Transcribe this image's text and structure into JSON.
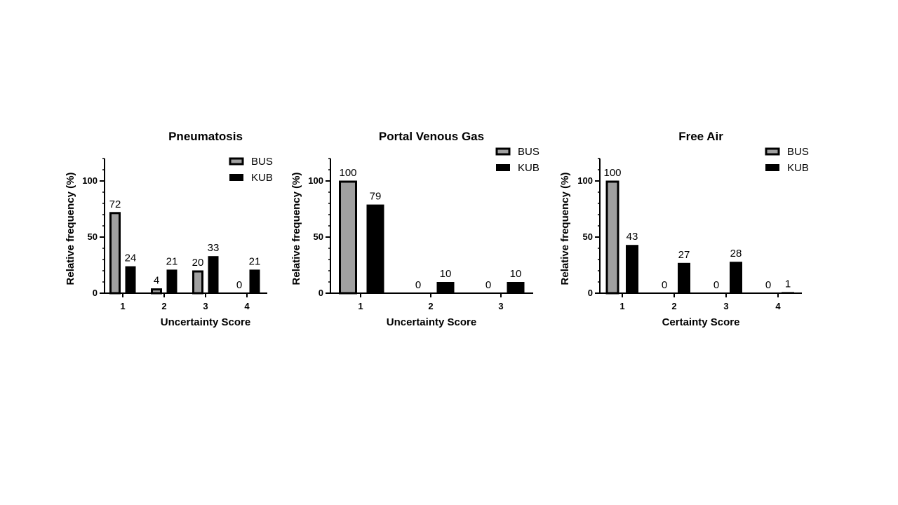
{
  "chart_data": [
    {
      "type": "bar",
      "title": "Pneumatosis",
      "xlabel": "Uncertainty Score",
      "ylabel": "Relative frequency (%)",
      "categories": [
        "1",
        "2",
        "3",
        "4"
      ],
      "ylim": [
        0,
        120
      ],
      "yticks": [
        "0",
        "50",
        "100"
      ],
      "legend_position": "top-right",
      "series": [
        {
          "name": "BUS",
          "color": "#a0a0a0",
          "values": [
            72,
            4,
            20,
            0
          ],
          "labels": [
            "72",
            "4",
            "20",
            "0"
          ]
        },
        {
          "name": "KUB",
          "color": "#000000",
          "values": [
            24,
            21,
            33,
            21
          ],
          "labels": [
            "24",
            "21",
            "33",
            "21"
          ]
        }
      ]
    },
    {
      "type": "bar",
      "title": "Portal Venous Gas",
      "xlabel": "Uncertainty Score",
      "ylabel": "Relative frequency (%)",
      "categories": [
        "1",
        "2",
        "3"
      ],
      "ylim": [
        0,
        120
      ],
      "yticks": [
        "0",
        "50",
        "100"
      ],
      "legend_position": "top-right",
      "series": [
        {
          "name": "BUS",
          "color": "#a0a0a0",
          "values": [
            100,
            0,
            0
          ],
          "labels": [
            "100",
            "0",
            "0"
          ]
        },
        {
          "name": "KUB",
          "color": "#000000",
          "values": [
            79,
            10,
            10
          ],
          "labels": [
            "79",
            "10",
            "10"
          ]
        }
      ]
    },
    {
      "type": "bar",
      "title": "Free Air",
      "xlabel": "Certainty Score",
      "ylabel": "Relative frequency (%)",
      "categories": [
        "1",
        "2",
        "3",
        "4"
      ],
      "ylim": [
        0,
        120
      ],
      "yticks": [
        "0",
        "50",
        "100"
      ],
      "legend_position": "top-right",
      "series": [
        {
          "name": "BUS",
          "color": "#a0a0a0",
          "values": [
            100,
            0,
            0,
            0
          ],
          "labels": [
            "100",
            "0",
            "0",
            "0"
          ]
        },
        {
          "name": "KUB",
          "color": "#000000",
          "values": [
            43,
            27,
            28,
            1
          ],
          "labels": [
            "43",
            "27",
            "28",
            "1"
          ]
        }
      ]
    }
  ]
}
